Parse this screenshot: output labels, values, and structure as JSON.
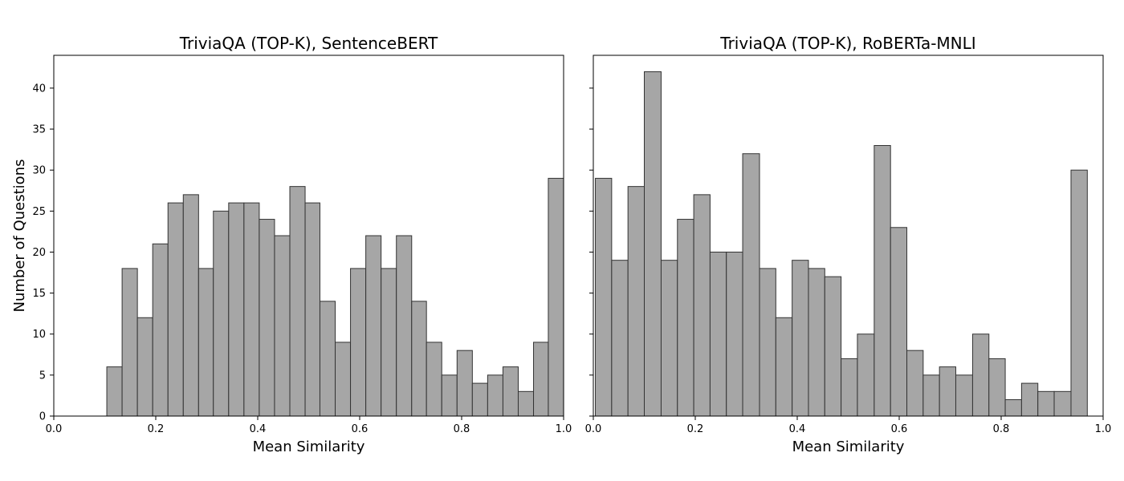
{
  "chart_data": [
    {
      "type": "bar",
      "title": "TriviaQA (TOP-K), SentenceBERT",
      "xlabel": "Mean Similarity",
      "ylabel": "Number of Questions",
      "xlim": [
        0.0,
        1.0
      ],
      "ylim": [
        0,
        44
      ],
      "xticks": [
        "0.0",
        "0.2",
        "0.4",
        "0.6",
        "0.8",
        "1.0"
      ],
      "yticks": [
        "0",
        "5",
        "10",
        "15",
        "20",
        "25",
        "30",
        "35",
        "40"
      ],
      "bar_color": "#a6a6a6",
      "edge_color": "#333333",
      "bins": [
        {
          "x0": 0.104,
          "x1": 0.134,
          "value": 6
        },
        {
          "x0": 0.134,
          "x1": 0.164,
          "value": 18
        },
        {
          "x0": 0.164,
          "x1": 0.194,
          "value": 12
        },
        {
          "x0": 0.194,
          "x1": 0.224,
          "value": 21
        },
        {
          "x0": 0.224,
          "x1": 0.254,
          "value": 26
        },
        {
          "x0": 0.254,
          "x1": 0.284,
          "value": 27
        },
        {
          "x0": 0.284,
          "x1": 0.313,
          "value": 18
        },
        {
          "x0": 0.313,
          "x1": 0.343,
          "value": 25
        },
        {
          "x0": 0.343,
          "x1": 0.373,
          "value": 26
        },
        {
          "x0": 0.373,
          "x1": 0.403,
          "value": 26
        },
        {
          "x0": 0.403,
          "x1": 0.433,
          "value": 24
        },
        {
          "x0": 0.433,
          "x1": 0.463,
          "value": 22
        },
        {
          "x0": 0.463,
          "x1": 0.493,
          "value": 28
        },
        {
          "x0": 0.493,
          "x1": 0.522,
          "value": 26
        },
        {
          "x0": 0.522,
          "x1": 0.552,
          "value": 14
        },
        {
          "x0": 0.552,
          "x1": 0.582,
          "value": 9
        },
        {
          "x0": 0.582,
          "x1": 0.612,
          "value": 18
        },
        {
          "x0": 0.612,
          "x1": 0.642,
          "value": 22
        },
        {
          "x0": 0.642,
          "x1": 0.672,
          "value": 18
        },
        {
          "x0": 0.672,
          "x1": 0.702,
          "value": 22
        },
        {
          "x0": 0.702,
          "x1": 0.731,
          "value": 14
        },
        {
          "x0": 0.731,
          "x1": 0.761,
          "value": 9
        },
        {
          "x0": 0.761,
          "x1": 0.791,
          "value": 5
        },
        {
          "x0": 0.791,
          "x1": 0.821,
          "value": 8
        },
        {
          "x0": 0.821,
          "x1": 0.851,
          "value": 4
        },
        {
          "x0": 0.851,
          "x1": 0.881,
          "value": 5
        },
        {
          "x0": 0.881,
          "x1": 0.911,
          "value": 6
        },
        {
          "x0": 0.911,
          "x1": 0.941,
          "value": 3
        },
        {
          "x0": 0.941,
          "x1": 0.97,
          "value": 9
        },
        {
          "x0": 0.97,
          "x1": 1.0,
          "value": 29
        }
      ]
    },
    {
      "type": "bar",
      "title": "TriviaQA (TOP-K), RoBERTa-MNLI",
      "xlabel": "Mean Similarity",
      "ylabel": "",
      "xlim": [
        0.0,
        1.0
      ],
      "ylim": [
        0,
        44
      ],
      "xticks": [
        "0.0",
        "0.2",
        "0.4",
        "0.6",
        "0.8",
        "1.0"
      ],
      "yticks": [],
      "bar_color": "#a6a6a6",
      "edge_color": "#333333",
      "bins": [
        {
          "x0": 0.004,
          "x1": 0.036,
          "value": 29
        },
        {
          "x0": 0.036,
          "x1": 0.068,
          "value": 19
        },
        {
          "x0": 0.068,
          "x1": 0.1,
          "value": 28
        },
        {
          "x0": 0.1,
          "x1": 0.133,
          "value": 42
        },
        {
          "x0": 0.133,
          "x1": 0.165,
          "value": 19
        },
        {
          "x0": 0.165,
          "x1": 0.197,
          "value": 24
        },
        {
          "x0": 0.197,
          "x1": 0.229,
          "value": 27
        },
        {
          "x0": 0.229,
          "x1": 0.261,
          "value": 20
        },
        {
          "x0": 0.261,
          "x1": 0.293,
          "value": 20
        },
        {
          "x0": 0.293,
          "x1": 0.326,
          "value": 32
        },
        {
          "x0": 0.326,
          "x1": 0.358,
          "value": 18
        },
        {
          "x0": 0.358,
          "x1": 0.39,
          "value": 12
        },
        {
          "x0": 0.39,
          "x1": 0.422,
          "value": 19
        },
        {
          "x0": 0.422,
          "x1": 0.454,
          "value": 18
        },
        {
          "x0": 0.454,
          "x1": 0.486,
          "value": 17
        },
        {
          "x0": 0.486,
          "x1": 0.518,
          "value": 7
        },
        {
          "x0": 0.518,
          "x1": 0.551,
          "value": 10
        },
        {
          "x0": 0.551,
          "x1": 0.583,
          "value": 33
        },
        {
          "x0": 0.583,
          "x1": 0.615,
          "value": 23
        },
        {
          "x0": 0.615,
          "x1": 0.647,
          "value": 8
        },
        {
          "x0": 0.647,
          "x1": 0.679,
          "value": 5
        },
        {
          "x0": 0.679,
          "x1": 0.711,
          "value": 6
        },
        {
          "x0": 0.711,
          "x1": 0.744,
          "value": 5
        },
        {
          "x0": 0.744,
          "x1": 0.776,
          "value": 10
        },
        {
          "x0": 0.776,
          "x1": 0.808,
          "value": 7
        },
        {
          "x0": 0.808,
          "x1": 0.84,
          "value": 2
        },
        {
          "x0": 0.84,
          "x1": 0.872,
          "value": 4
        },
        {
          "x0": 0.872,
          "x1": 0.904,
          "value": 3
        },
        {
          "x0": 0.904,
          "x1": 0.937,
          "value": 3
        },
        {
          "x0": 0.937,
          "x1": 0.969,
          "value": 30
        }
      ]
    }
  ]
}
